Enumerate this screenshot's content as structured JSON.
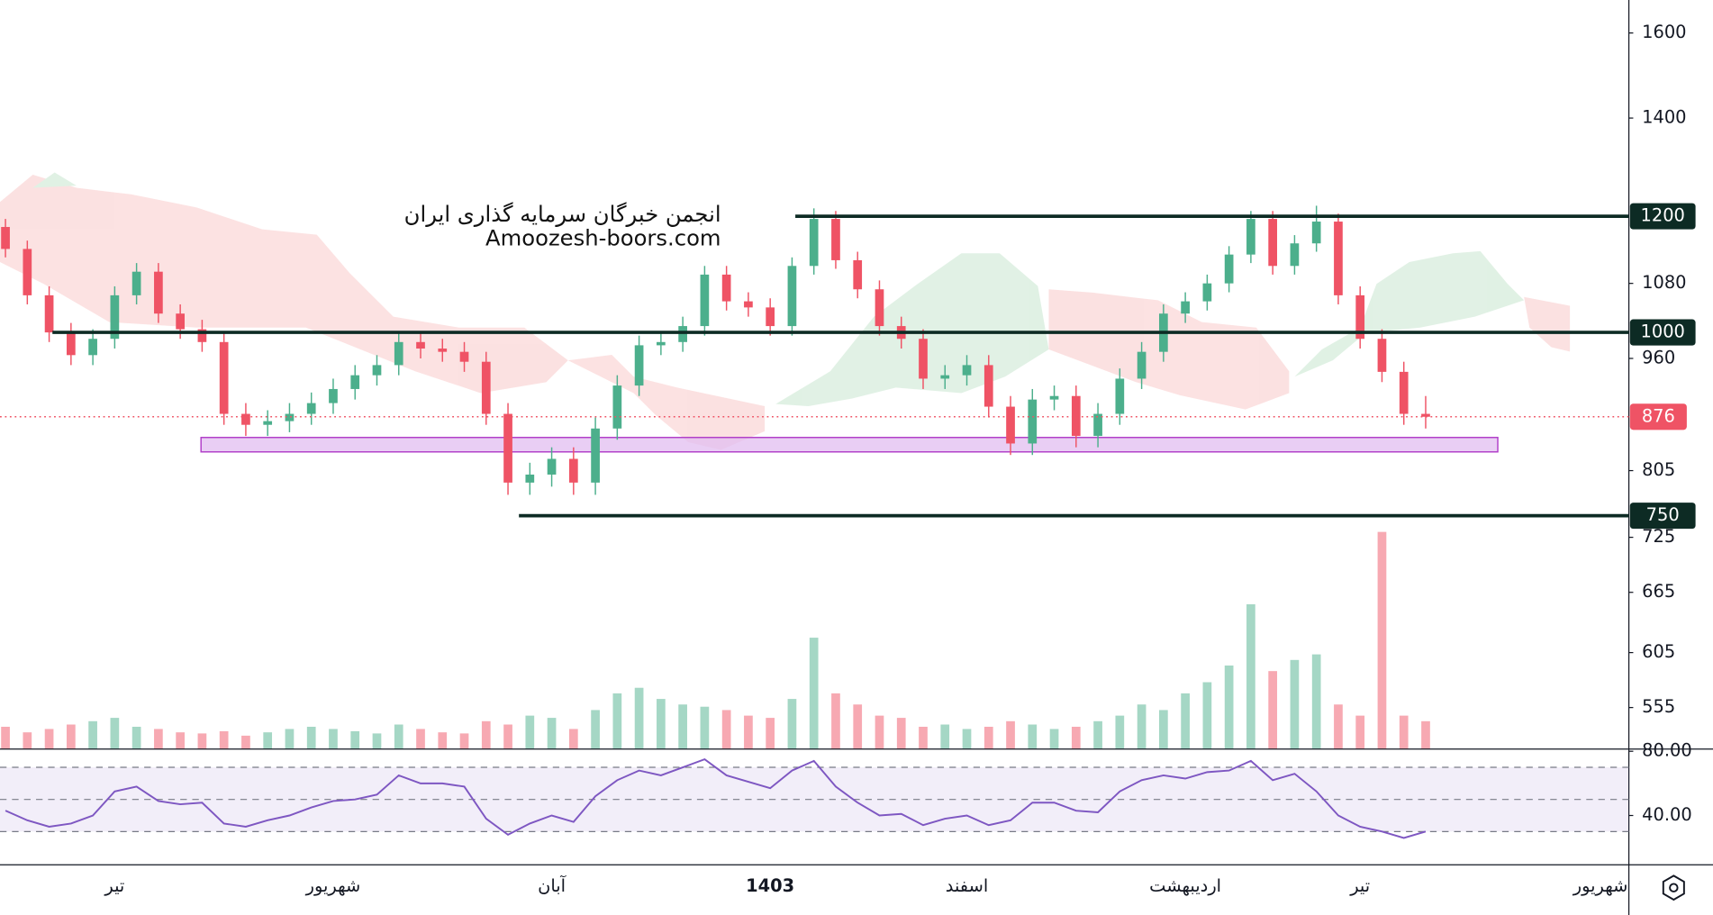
{
  "chart_data": {
    "type": "candlestick",
    "log": true,
    "ylim": [
      520,
      1685
    ],
    "yticks": [
      1600,
      1400,
      1080,
      960,
      805,
      725,
      665,
      605,
      555
    ],
    "levels": [
      1200,
      1000,
      750
    ],
    "zone": [
      829,
      848
    ],
    "watermark": [
      "انجمن خبرگان سرمایه گذاری ایران",
      "Amoozesh-boors.com"
    ],
    "up_color": "#4caf8c",
    "down_color": "#ef5365",
    "level_color": "#0d2b24",
    "categories": [
      null,
      null,
      null,
      null,
      null,
      "تیر",
      null,
      null,
      null,
      null,
      null,
      null,
      null,
      null,
      null,
      "شهریور",
      null,
      null,
      null,
      null,
      null,
      null,
      null,
      null,
      null,
      "آبان",
      null,
      null,
      null,
      null,
      null,
      null,
      null,
      null,
      null,
      "1403",
      null,
      null,
      null,
      null,
      null,
      null,
      null,
      null,
      "اسفند",
      null,
      null,
      null,
      null,
      null,
      null,
      null,
      null,
      null,
      "اردیبهشت",
      null,
      null,
      null,
      null,
      null,
      null,
      null,
      "تیر",
      null,
      null,
      null,
      null,
      null,
      null,
      null,
      null,
      null,
      null,
      "شهریور"
    ],
    "candles": {
      "open": [
        1180,
        1140,
        1060,
        1000,
        965,
        990,
        1060,
        1100,
        1030,
        1005,
        985,
        880,
        865,
        870,
        880,
        895,
        915,
        935,
        950,
        985,
        975,
        970,
        955,
        880,
        790,
        800,
        820,
        790,
        860,
        920,
        980,
        985,
        1010,
        1095,
        1050,
        1040,
        1010,
        1110,
        1195,
        1120,
        1070,
        1010,
        990,
        930,
        935,
        950,
        890,
        840,
        900,
        905,
        850,
        880,
        930,
        970,
        1030,
        1050,
        1080,
        1130,
        1195,
        1110,
        1150,
        1190,
        1060,
        990,
        940,
        880,
        null,
        null,
        null,
        null,
        null,
        null,
        null,
        null
      ],
      "high": [
        1195,
        1155,
        1075,
        1015,
        1005,
        1075,
        1115,
        1115,
        1045,
        1020,
        1000,
        895,
        885,
        895,
        910,
        930,
        950,
        965,
        1000,
        1000,
        990,
        985,
        970,
        895,
        815,
        835,
        835,
        875,
        935,
        995,
        1000,
        1025,
        1110,
        1110,
        1065,
        1055,
        1125,
        1215,
        1210,
        1135,
        1085,
        1025,
        1005,
        950,
        965,
        965,
        905,
        915,
        920,
        920,
        895,
        945,
        985,
        1045,
        1065,
        1095,
        1145,
        1210,
        1210,
        1165,
        1220,
        1205,
        1075,
        1005,
        955,
        905,
        null,
        null,
        null,
        null,
        null,
        null,
        null,
        null
      ],
      "low": [
        1125,
        1045,
        985,
        950,
        950,
        975,
        1045,
        1015,
        990,
        970,
        865,
        850,
        850,
        855,
        865,
        880,
        900,
        920,
        935,
        960,
        955,
        940,
        865,
        775,
        775,
        785,
        775,
        775,
        845,
        905,
        965,
        970,
        995,
        1035,
        1025,
        995,
        995,
        1095,
        1105,
        1055,
        995,
        975,
        915,
        915,
        920,
        875,
        825,
        825,
        885,
        835,
        835,
        865,
        915,
        955,
        1015,
        1035,
        1065,
        1115,
        1095,
        1095,
        1135,
        1045,
        975,
        925,
        865,
        860,
        null,
        null,
        null,
        null,
        null,
        null,
        null,
        null
      ],
      "close": [
        1140,
        1060,
        1000,
        965,
        990,
        1060,
        1100,
        1030,
        1005,
        985,
        880,
        865,
        870,
        880,
        895,
        915,
        935,
        950,
        985,
        975,
        970,
        955,
        880,
        790,
        800,
        820,
        790,
        860,
        920,
        980,
        985,
        1010,
        1095,
        1050,
        1040,
        1010,
        1110,
        1195,
        1120,
        1070,
        1010,
        990,
        930,
        935,
        950,
        890,
        840,
        900,
        905,
        850,
        880,
        930,
        970,
        1030,
        1050,
        1080,
        1130,
        1195,
        1110,
        1150,
        1190,
        1060,
        990,
        940,
        880,
        876,
        null,
        null,
        null,
        null,
        null,
        null,
        null,
        null
      ]
    },
    "volume": [
      20,
      15,
      18,
      22,
      25,
      28,
      20,
      18,
      15,
      14,
      16,
      12,
      15,
      18,
      20,
      18,
      16,
      14,
      22,
      18,
      15,
      14,
      25,
      22,
      30,
      28,
      18,
      35,
      50,
      55,
      45,
      40,
      38,
      35,
      30,
      28,
      45,
      100,
      50,
      40,
      30,
      28,
      20,
      22,
      18,
      20,
      25,
      22,
      18,
      20,
      25,
      30,
      40,
      35,
      50,
      60,
      75,
      130,
      70,
      80,
      85,
      40,
      30,
      195,
      30,
      25,
      null,
      null,
      null,
      null,
      null,
      null,
      null,
      null
    ],
    "rsi": {
      "color": "#7e57c2",
      "ylim": [
        9.3,
        81.4
      ],
      "yticks": [
        {
          "value": 80,
          "label": "80.00"
        },
        {
          "value": 40,
          "label": "40.00"
        }
      ],
      "levels": [
        70,
        50,
        30
      ],
      "values": [
        43,
        37,
        33,
        35,
        40,
        55,
        58,
        49,
        47,
        48,
        35,
        33,
        37,
        40,
        45,
        49,
        50,
        53,
        65,
        60,
        60,
        58,
        38,
        28,
        35,
        40,
        36,
        52,
        62,
        68,
        65,
        70,
        75,
        65,
        61,
        57,
        68,
        74,
        58,
        48,
        40,
        41,
        34,
        38,
        40,
        34,
        37,
        48,
        48,
        43,
        42,
        55,
        62,
        65,
        63,
        67,
        68,
        74,
        62,
        66,
        55,
        40,
        33,
        30,
        26,
        30,
        null,
        null,
        null,
        null,
        null,
        null,
        null,
        null
      ]
    }
  }
}
